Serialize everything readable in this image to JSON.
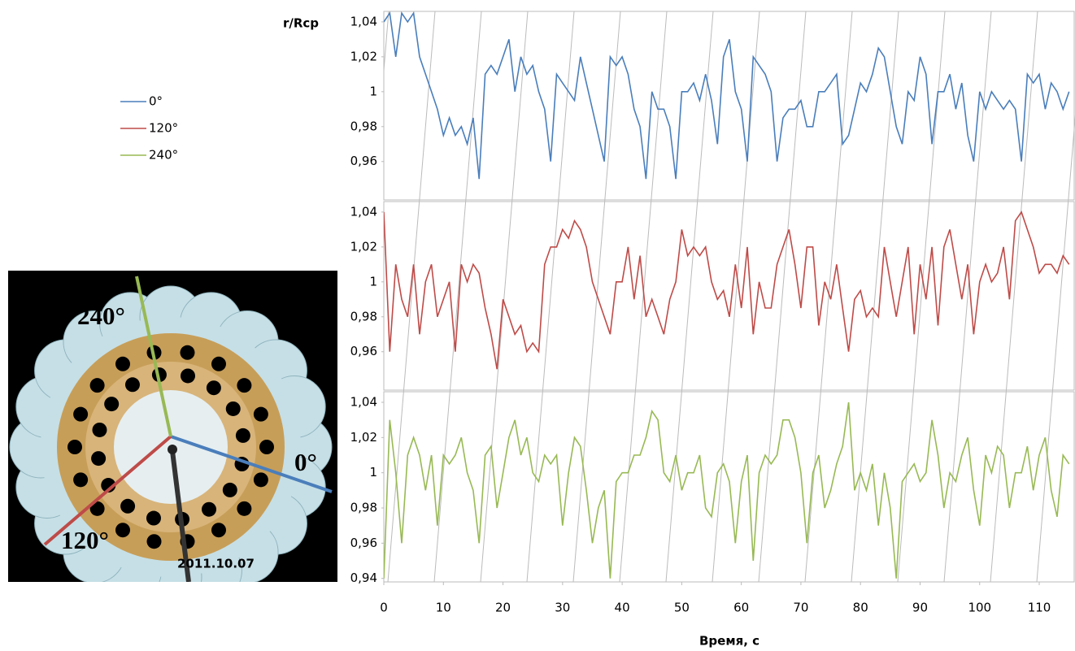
{
  "chart_data": [
    {
      "type": "line",
      "ylabel": "r/Rcp",
      "x": [
        0,
        1,
        2,
        3,
        4,
        5,
        6,
        7,
        8,
        9,
        10,
        11,
        12,
        13,
        14,
        15,
        16,
        17,
        18,
        19,
        20,
        21,
        22,
        23,
        24,
        25,
        26,
        27,
        28,
        29,
        30,
        31,
        32,
        33,
        34,
        35,
        36,
        37,
        38,
        39,
        40,
        41,
        42,
        43,
        44,
        45,
        46,
        47,
        48,
        49,
        50,
        51,
        52,
        53,
        54,
        55,
        56,
        57,
        58,
        59,
        60,
        61,
        62,
        63,
        64,
        65,
        66,
        67,
        68,
        69,
        70,
        71,
        72,
        73,
        74,
        75,
        76,
        77,
        78,
        79,
        80,
        81,
        82,
        83,
        84,
        85,
        86,
        87,
        88,
        89,
        90,
        91,
        92,
        93,
        94,
        95,
        96,
        97,
        98,
        99,
        100,
        101,
        102,
        103,
        104,
        105,
        106,
        107,
        108,
        109,
        110,
        111,
        112,
        113,
        114,
        115
      ],
      "series": [
        {
          "name": "0°",
          "color": "#4a7ebb",
          "values": [
            1.04,
            1.045,
            1.02,
            1.045,
            1.04,
            1.045,
            1.02,
            1.01,
            1.0,
            0.99,
            0.975,
            0.985,
            0.975,
            0.98,
            0.97,
            0.985,
            0.95,
            1.01,
            1.015,
            1.01,
            1.02,
            1.03,
            1.0,
            1.02,
            1.01,
            1.015,
            1.0,
            0.99,
            0.96,
            1.01,
            1.005,
            1.0,
            0.995,
            1.02,
            1.005,
            0.99,
            0.975,
            0.96,
            1.02,
            1.015,
            1.02,
            1.01,
            0.99,
            0.98,
            0.95,
            1.0,
            0.99,
            0.99,
            0.98,
            0.95,
            1.0,
            1.0,
            1.005,
            0.995,
            1.01,
            0.995,
            0.97,
            1.02,
            1.03,
            1.0,
            0.99,
            0.96,
            1.02,
            1.015,
            1.01,
            1.0,
            0.96,
            0.985,
            0.99,
            0.99,
            0.995,
            0.98,
            0.98,
            1.0,
            1.0,
            1.005,
            1.01,
            0.97,
            0.975,
            0.99,
            1.005,
            1.0,
            1.01,
            1.025,
            1.02,
            1.0,
            0.98,
            0.97,
            1.0,
            0.995,
            1.02,
            1.01,
            0.97,
            1.0,
            1.0,
            1.01,
            0.99,
            1.005,
            0.975,
            0.96,
            1.0,
            0.99,
            1.0,
            0.995,
            0.99,
            0.995,
            0.99,
            0.96,
            1.01,
            1.005,
            1.01,
            0.99,
            1.005,
            1.0,
            0.99,
            1.0
          ]
        }
      ],
      "ylim": [
        0.938,
        1.046
      ],
      "yticks": [
        {
          "value": 0.96,
          "label": "0,96"
        },
        {
          "value": 0.98,
          "label": "0,98"
        },
        1,
        {
          "value": 1.02,
          "label": "1,02"
        },
        {
          "value": 1.04,
          "label": "1,04"
        }
      ]
    },
    {
      "type": "line",
      "x": [
        0,
        1,
        2,
        3,
        4,
        5,
        6,
        7,
        8,
        9,
        10,
        11,
        12,
        13,
        14,
        15,
        16,
        17,
        18,
        19,
        20,
        21,
        22,
        23,
        24,
        25,
        26,
        27,
        28,
        29,
        30,
        31,
        32,
        33,
        34,
        35,
        36,
        37,
        38,
        39,
        40,
        41,
        42,
        43,
        44,
        45,
        46,
        47,
        48,
        49,
        50,
        51,
        52,
        53,
        54,
        55,
        56,
        57,
        58,
        59,
        60,
        61,
        62,
        63,
        64,
        65,
        66,
        67,
        68,
        69,
        70,
        71,
        72,
        73,
        74,
        75,
        76,
        77,
        78,
        79,
        80,
        81,
        82,
        83,
        84,
        85,
        86,
        87,
        88,
        89,
        90,
        91,
        92,
        93,
        94,
        95,
        96,
        97,
        98,
        99,
        100,
        101,
        102,
        103,
        104,
        105,
        106,
        107,
        108,
        109,
        110,
        111,
        112,
        113,
        114,
        115
      ],
      "series": [
        {
          "name": "120°",
          "color": "#be4b48",
          "values": [
            1.04,
            0.96,
            1.01,
            0.99,
            0.98,
            1.01,
            0.97,
            1.0,
            1.01,
            0.98,
            0.99,
            1.0,
            0.96,
            1.01,
            1.0,
            1.01,
            1.005,
            0.985,
            0.97,
            0.95,
            0.99,
            0.98,
            0.97,
            0.975,
            0.96,
            0.965,
            0.96,
            1.01,
            1.02,
            1.02,
            1.03,
            1.025,
            1.035,
            1.03,
            1.02,
            1.0,
            0.99,
            0.98,
            0.97,
            1.0,
            1.0,
            1.02,
            0.99,
            1.015,
            0.98,
            0.99,
            0.98,
            0.97,
            0.99,
            1.0,
            1.03,
            1.015,
            1.02,
            1.015,
            1.02,
            1.0,
            0.99,
            0.995,
            0.98,
            1.01,
            0.985,
            1.02,
            0.97,
            1.0,
            0.985,
            0.985,
            1.01,
            1.02,
            1.03,
            1.01,
            0.985,
            1.02,
            1.02,
            0.975,
            1.0,
            0.99,
            1.01,
            0.985,
            0.96,
            0.99,
            0.995,
            0.98,
            0.985,
            0.98,
            1.02,
            1.0,
            0.98,
            1.0,
            1.02,
            0.97,
            1.01,
            0.99,
            1.02,
            0.975,
            1.02,
            1.03,
            1.01,
            0.99,
            1.01,
            0.97,
            1.0,
            1.01,
            1.0,
            1.005,
            1.02,
            0.99,
            1.035,
            1.04,
            1.03,
            1.02,
            1.005,
            1.01,
            1.01,
            1.005,
            1.015,
            1.01
          ]
        }
      ],
      "ylim": [
        0.938,
        1.046
      ],
      "yticks": [
        {
          "value": 0.96,
          "label": "0,96"
        },
        {
          "value": 0.98,
          "label": "0,98"
        },
        1,
        {
          "value": 1.02,
          "label": "1,02"
        },
        {
          "value": 1.04,
          "label": "1,04"
        }
      ]
    },
    {
      "type": "line",
      "xlabel": "Время, с",
      "x": [
        0,
        1,
        2,
        3,
        4,
        5,
        6,
        7,
        8,
        9,
        10,
        11,
        12,
        13,
        14,
        15,
        16,
        17,
        18,
        19,
        20,
        21,
        22,
        23,
        24,
        25,
        26,
        27,
        28,
        29,
        30,
        31,
        32,
        33,
        34,
        35,
        36,
        37,
        38,
        39,
        40,
        41,
        42,
        43,
        44,
        45,
        46,
        47,
        48,
        49,
        50,
        51,
        52,
        53,
        54,
        55,
        56,
        57,
        58,
        59,
        60,
        61,
        62,
        63,
        64,
        65,
        66,
        67,
        68,
        69,
        70,
        71,
        72,
        73,
        74,
        75,
        76,
        77,
        78,
        79,
        80,
        81,
        82,
        83,
        84,
        85,
        86,
        87,
        88,
        89,
        90,
        91,
        92,
        93,
        94,
        95,
        96,
        97,
        98,
        99,
        100,
        101,
        102,
        103,
        104,
        105,
        106,
        107,
        108,
        109,
        110,
        111,
        112,
        113,
        114,
        115
      ],
      "series": [
        {
          "name": "240°",
          "color": "#98b954",
          "values": [
            0.94,
            1.03,
            1.0,
            0.96,
            1.01,
            1.02,
            1.01,
            0.99,
            1.01,
            0.97,
            1.01,
            1.005,
            1.01,
            1.02,
            1.0,
            0.99,
            0.96,
            1.01,
            1.015,
            0.98,
            1.0,
            1.02,
            1.03,
            1.01,
            1.02,
            1.0,
            0.995,
            1.01,
            1.005,
            1.01,
            0.97,
            1.0,
            1.02,
            1.015,
            0.99,
            0.96,
            0.98,
            0.99,
            0.94,
            0.995,
            1.0,
            1.0,
            1.01,
            1.01,
            1.02,
            1.035,
            1.03,
            1.0,
            0.995,
            1.01,
            0.99,
            1.0,
            1.0,
            1.01,
            0.98,
            0.975,
            1.0,
            1.005,
            0.995,
            0.96,
            0.995,
            1.01,
            0.95,
            1.0,
            1.01,
            1.005,
            1.01,
            1.03,
            1.03,
            1.02,
            1.0,
            0.96,
            1.0,
            1.01,
            0.98,
            0.99,
            1.005,
            1.015,
            1.04,
            0.99,
            1.0,
            0.99,
            1.005,
            0.97,
            1.0,
            0.98,
            0.94,
            0.995,
            1.0,
            1.005,
            0.995,
            1.0,
            1.03,
            1.01,
            0.98,
            1.0,
            0.995,
            1.01,
            1.02,
            0.99,
            0.97,
            1.01,
            1.0,
            1.015,
            1.01,
            0.98,
            1.0,
            1.0,
            1.015,
            0.99,
            1.01,
            1.02,
            0.99,
            0.975,
            1.01,
            1.005
          ]
        }
      ],
      "ylim": [
        0.938,
        1.046
      ],
      "yticks": [
        {
          "value": 0.94,
          "label": "0,94"
        },
        {
          "value": 0.96,
          "label": "0,96"
        },
        {
          "value": 0.98,
          "label": "0,98"
        },
        1,
        {
          "value": 1.02,
          "label": "1,02"
        },
        {
          "value": 1.04,
          "label": "1,04"
        }
      ],
      "xlim": [
        0,
        116
      ],
      "xticks": [
        0,
        10,
        20,
        30,
        40,
        50,
        60,
        70,
        80,
        90,
        100,
        110
      ],
      "annotations": {
        "angles": [
          "240°",
          "0°",
          "120°"
        ],
        "timestamp": "2011.10.07"
      }
    }
  ]
}
